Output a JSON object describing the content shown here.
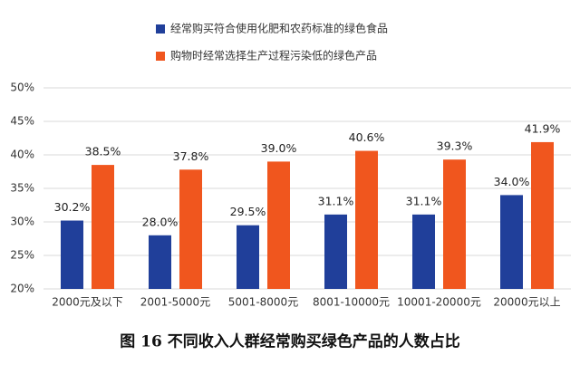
{
  "chart_data": {
    "type": "bar",
    "title": "图 16  不同收入人群经常购买绿色产品的人数占比",
    "categories": [
      "2000元及以下",
      "2001-5000元",
      "5001-8000元",
      "8001-10000元",
      "10001-20000元",
      "20000元以上"
    ],
    "series": [
      {
        "name": "经常购买符合使用化肥和农药标准的绿色食品",
        "color": "#203f9a",
        "values": [
          30.2,
          28.0,
          29.5,
          31.1,
          31.1,
          34.0
        ],
        "value_labels": [
          "30.2%",
          "28.0%",
          "29.5%",
          "31.1%",
          "31.1%",
          "34.0%"
        ]
      },
      {
        "name": "购物时经常选择生产过程污染低的绿色产品",
        "color": "#f0561e",
        "values": [
          38.5,
          37.8,
          39.0,
          40.6,
          39.3,
          41.9
        ],
        "value_labels": [
          "38.5%",
          "37.8%",
          "39.0%",
          "40.6%",
          "39.3%",
          "41.9%"
        ]
      }
    ],
    "ylim": [
      20,
      50
    ],
    "yticks": [
      {
        "value": 20,
        "label": "20%"
      },
      {
        "value": 25,
        "label": "25%"
      },
      {
        "value": 30,
        "label": "30%"
      },
      {
        "value": 35,
        "label": "35%"
      },
      {
        "value": 40,
        "label": "40%"
      },
      {
        "value": 45,
        "label": "45%"
      },
      {
        "value": 50,
        "label": "50%"
      }
    ],
    "grid": true
  }
}
